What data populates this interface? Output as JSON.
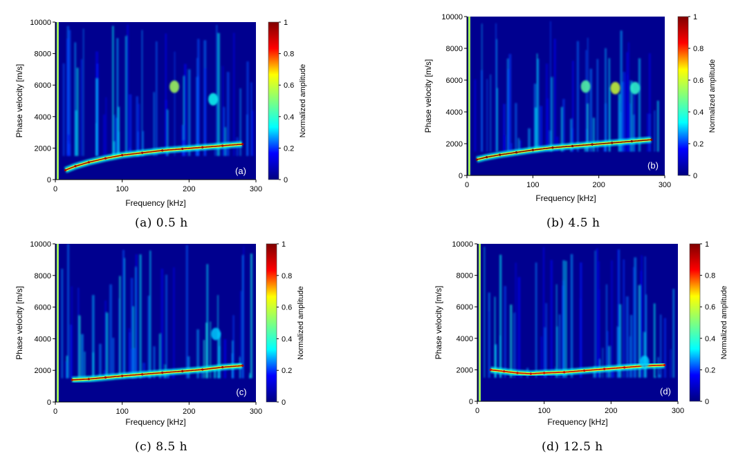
{
  "colormap": [
    "#00007f",
    "#0000ff",
    "#00ffff",
    "#7fff7f",
    "#ffff00",
    "#ff0000",
    "#7f0000"
  ],
  "chart_data": [
    {
      "type": "heatmap",
      "panel_label": "(a)",
      "caption": "(a) 0.5 h",
      "xlabel": "Frequency [kHz]",
      "ylabel": "Phase velocity [m/s]",
      "colorbar_label": "Normalized amplitude",
      "xlim": [
        0,
        300
      ],
      "ylim": [
        0,
        10000
      ],
      "clim": [
        0,
        1
      ],
      "x_ticks": [
        0,
        100,
        200,
        300
      ],
      "y_ticks": [
        0,
        2000,
        4000,
        6000,
        8000,
        10000
      ],
      "colorbar_ticks": [
        0,
        0.2,
        0.4,
        0.6,
        0.8,
        1
      ],
      "ridge": {
        "x": [
          15,
          30,
          50,
          75,
          100,
          130,
          160,
          190,
          220,
          250,
          280
        ],
        "y": [
          600,
          850,
          1100,
          1350,
          1550,
          1700,
          1850,
          1950,
          2050,
          2150,
          2250
        ],
        "peak_amplitude": 0.95
      },
      "hot_spots": [
        {
          "x": 178,
          "y": 5900,
          "amplitude": 0.55
        },
        {
          "x": 236,
          "y": 5100,
          "amplitude": 0.35
        }
      ]
    },
    {
      "type": "heatmap",
      "panel_label": "(b)",
      "caption": "(b) 4.5 h",
      "xlabel": "Frequency [kHz]",
      "ylabel": "Phase velocity [m/s]",
      "colorbar_label": "Normalized amplitude",
      "xlim": [
        0,
        300
      ],
      "ylim": [
        0,
        10000
      ],
      "clim": [
        0,
        1
      ],
      "x_ticks": [
        0,
        100,
        200,
        300
      ],
      "y_ticks": [
        0,
        2000,
        4000,
        6000,
        8000,
        10000
      ],
      "colorbar_ticks": [
        0,
        0.2,
        0.4,
        0.6,
        0.8,
        1
      ],
      "ridge": {
        "x": [
          15,
          30,
          50,
          75,
          100,
          130,
          160,
          190,
          220,
          250,
          280
        ],
        "y": [
          1000,
          1150,
          1300,
          1450,
          1600,
          1750,
          1850,
          1950,
          2050,
          2150,
          2250
        ],
        "peak_amplitude": 1.0
      },
      "hot_spots": [
        {
          "x": 180,
          "y": 5600,
          "amplitude": 0.45
        },
        {
          "x": 225,
          "y": 5500,
          "amplitude": 0.6
        },
        {
          "x": 255,
          "y": 5500,
          "amplitude": 0.4
        }
      ]
    },
    {
      "type": "heatmap",
      "panel_label": "(c)",
      "caption": "(c) 8.5 h",
      "xlabel": "Frequency [kHz]",
      "ylabel": "Phase velocity [m/s]",
      "colorbar_label": "Normalized amplitude",
      "xlim": [
        0,
        300
      ],
      "ylim": [
        0,
        10000
      ],
      "clim": [
        0,
        1
      ],
      "x_ticks": [
        0,
        100,
        200,
        300
      ],
      "y_ticks": [
        0,
        2000,
        4000,
        6000,
        8000,
        10000
      ],
      "colorbar_ticks": [
        0,
        0.2,
        0.4,
        0.6,
        0.8,
        1
      ],
      "ridge": {
        "x": [
          25,
          50,
          75,
          100,
          130,
          160,
          190,
          220,
          250,
          280
        ],
        "y": [
          1400,
          1450,
          1550,
          1650,
          1750,
          1850,
          1950,
          2050,
          2200,
          2300
        ],
        "peak_amplitude": 0.95
      },
      "hot_spots": [
        {
          "x": 240,
          "y": 4300,
          "amplitude": 0.3
        }
      ]
    },
    {
      "type": "heatmap",
      "panel_label": "(d)",
      "caption": "(d) 12.5 h",
      "xlabel": "Frequency [kHz]",
      "ylabel": "Phase velocity [m/s]",
      "colorbar_label": "Normalized amplitude",
      "xlim": [
        0,
        300
      ],
      "ylim": [
        0,
        10000
      ],
      "clim": [
        0,
        1
      ],
      "x_ticks": [
        0,
        100,
        200,
        300
      ],
      "y_ticks": [
        0,
        2000,
        4000,
        6000,
        8000,
        10000
      ],
      "colorbar_ticks": [
        0,
        0.2,
        0.4,
        0.6,
        0.8,
        1
      ],
      "ridge": {
        "x": [
          20,
          40,
          60,
          80,
          100,
          130,
          160,
          190,
          220,
          250,
          280
        ],
        "y": [
          2000,
          1900,
          1800,
          1750,
          1800,
          1850,
          1950,
          2050,
          2150,
          2250,
          2300
        ],
        "peak_amplitude": 0.9
      },
      "hot_spots": [
        {
          "x": 250,
          "y": 2500,
          "amplitude": 0.3
        }
      ]
    }
  ]
}
